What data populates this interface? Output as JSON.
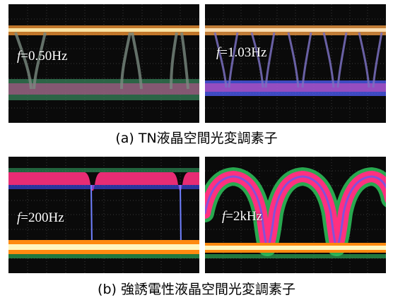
{
  "figure_a": {
    "caption": "(a)  TN液晶空間光変調素子",
    "left_panel": {
      "freq_symbol": "f",
      "freq_value": "=0.50Hz"
    },
    "right_panel": {
      "freq_symbol": "f",
      "freq_value": "=1.03Hz"
    }
  },
  "figure_b": {
    "caption": "(b)  強誘電性液晶空間光変調素子",
    "left_panel": {
      "freq_symbol": "f",
      "freq_value": "=200Hz"
    },
    "right_panel": {
      "freq_symbol": "f",
      "freq_value": "=2kHz"
    }
  },
  "colors": {
    "screen_bg": "#0a0a0a",
    "grid": "#3a3a3a",
    "trace_hot": "#fff6c0",
    "trace_orange": "#ff9a20",
    "trace_pink": "#ff3080",
    "trace_blue": "#4050ff",
    "trace_green": "#30d060"
  }
}
